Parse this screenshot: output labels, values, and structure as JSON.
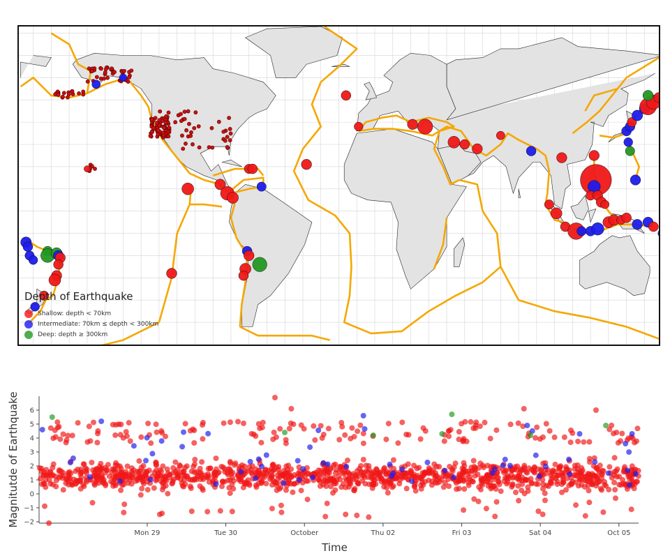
{
  "chart_data": [
    {
      "type": "scatter",
      "kind": "map",
      "legend_title": "Depth of Earthquake",
      "legend_placement": "bottom-left",
      "projection": "equirectangular-pacific-centered",
      "grid": true,
      "classes": [
        {
          "key": "shallow",
          "label": "Shallow: depth < 70km",
          "color": "#f01818"
        },
        {
          "key": "intermediate",
          "label": "Intermediate: 70km ≤ depth < 300km",
          "color": "#1c1cee"
        },
        {
          "key": "deep",
          "label": "Deep: depth ≥ 300km",
          "color": "#229922"
        }
      ],
      "colors": {
        "land": "#e3e3e3",
        "coast": "#222222",
        "plate_boundaries": "#f5a700",
        "grid": "#d4d4d4"
      },
      "points": [
        {
          "lon": -9,
          "lat": 38,
          "mag": 4.3,
          "cls": "shallow"
        },
        {
          "lon": 21,
          "lat": 39,
          "mag": 4.6,
          "cls": "shallow"
        },
        {
          "lon": 28,
          "lat": 38,
          "mag": 5.4,
          "cls": "shallow"
        },
        {
          "lon": 44,
          "lat": 31,
          "mag": 4.9,
          "cls": "shallow"
        },
        {
          "lon": 50,
          "lat": 30,
          "mag": 4.5,
          "cls": "shallow"
        },
        {
          "lon": 57,
          "lat": 28,
          "mag": 4.6,
          "cls": "shallow"
        },
        {
          "lon": 70,
          "lat": 34,
          "mag": 4.2,
          "cls": "shallow"
        },
        {
          "lon": 87,
          "lat": 27,
          "mag": 4.5,
          "cls": "intermediate"
        },
        {
          "lon": 104,
          "lat": 24,
          "mag": 4.6,
          "cls": "shallow"
        },
        {
          "lon": 122,
          "lat": 25,
          "mag": 4.6,
          "cls": "shallow"
        },
        {
          "lon": 123,
          "lat": 14,
          "mag": 6.9,
          "cls": "shallow"
        },
        {
          "lon": 122,
          "lat": 11,
          "mag": 5.0,
          "cls": "intermediate"
        },
        {
          "lon": 120,
          "lat": 7,
          "mag": 4.4,
          "cls": "shallow"
        },
        {
          "lon": 124,
          "lat": 7,
          "mag": 4.5,
          "cls": "shallow"
        },
        {
          "lon": 126,
          "lat": 4,
          "mag": 4.6,
          "cls": "shallow"
        },
        {
          "lon": 128,
          "lat": 3,
          "mag": 4.2,
          "cls": "shallow"
        },
        {
          "lon": 97,
          "lat": 3,
          "mag": 4.4,
          "cls": "shallow"
        },
        {
          "lon": 101,
          "lat": -1,
          "mag": 4.8,
          "cls": "shallow"
        },
        {
          "lon": 106,
          "lat": -7,
          "mag": 4.5,
          "cls": "shallow"
        },
        {
          "lon": 112,
          "lat": -9,
          "mag": 5.6,
          "cls": "shallow"
        },
        {
          "lon": 115,
          "lat": -9,
          "mag": 4.4,
          "cls": "intermediate"
        },
        {
          "lon": 120,
          "lat": -9,
          "mag": 4.5,
          "cls": "intermediate"
        },
        {
          "lon": 124,
          "lat": -8,
          "mag": 5.0,
          "cls": "intermediate"
        },
        {
          "lon": 130,
          "lat": -5,
          "mag": 4.8,
          "cls": "shallow"
        },
        {
          "lon": 133,
          "lat": -4,
          "mag": 4.7,
          "cls": "shallow"
        },
        {
          "lon": 137,
          "lat": -4,
          "mag": 4.3,
          "cls": "shallow"
        },
        {
          "lon": 140,
          "lat": -3,
          "mag": 4.5,
          "cls": "shallow"
        },
        {
          "lon": 146,
          "lat": -6,
          "mag": 4.6,
          "cls": "intermediate"
        },
        {
          "lon": 152,
          "lat": -5,
          "mag": 4.6,
          "cls": "intermediate"
        },
        {
          "lon": 155,
          "lat": -7,
          "mag": 4.5,
          "cls": "shallow"
        },
        {
          "lon": 160,
          "lat": -10,
          "mag": 4.3,
          "cls": "intermediate"
        },
        {
          "lon": 166,
          "lat": -14,
          "mag": 4.7,
          "cls": "intermediate"
        },
        {
          "lon": 167,
          "lat": -16,
          "mag": 4.5,
          "cls": "intermediate"
        },
        {
          "lon": 168,
          "lat": -20,
          "mag": 4.4,
          "cls": "intermediate"
        },
        {
          "lon": 170,
          "lat": -22,
          "mag": 4.3,
          "cls": "intermediate"
        },
        {
          "lon": 178,
          "lat": -18,
          "mag": 4.5,
          "cls": "deep"
        },
        {
          "lon": 178,
          "lat": -20,
          "mag": 5.2,
          "cls": "deep"
        },
        {
          "lon": -177,
          "lat": -19,
          "mag": 4.8,
          "cls": "deep"
        },
        {
          "lon": -176,
          "lat": -20,
          "mag": 4.6,
          "cls": "intermediate"
        },
        {
          "lon": -175,
          "lat": -21,
          "mag": 4.6,
          "cls": "shallow"
        },
        {
          "lon": -176,
          "lat": -24,
          "mag": 4.5,
          "cls": "shallow"
        },
        {
          "lon": -177,
          "lat": -29,
          "mag": 4.6,
          "cls": "shallow"
        },
        {
          "lon": -178,
          "lat": -31,
          "mag": 4.9,
          "cls": "shallow"
        },
        {
          "lon": 176,
          "lat": -38,
          "mag": 4.4,
          "cls": "shallow"
        },
        {
          "lon": 171,
          "lat": -43,
          "mag": 4.3,
          "cls": "intermediate"
        },
        {
          "lon": 140,
          "lat": 36,
          "mag": 4.5,
          "cls": "intermediate"
        },
        {
          "lon": 142,
          "lat": 38,
          "mag": 4.5,
          "cls": "intermediate"
        },
        {
          "lon": 141,
          "lat": 31,
          "mag": 4.3,
          "cls": "intermediate"
        },
        {
          "lon": 142,
          "lat": 27,
          "mag": 4.4,
          "cls": "deep"
        },
        {
          "lon": 143,
          "lat": 40,
          "mag": 4.4,
          "cls": "shallow"
        },
        {
          "lon": 146,
          "lat": 43,
          "mag": 4.7,
          "cls": "intermediate"
        },
        {
          "lon": 150,
          "lat": 46,
          "mag": 4.6,
          "cls": "intermediate"
        },
        {
          "lon": 152,
          "lat": 47,
          "mag": 5.6,
          "cls": "shallow"
        },
        {
          "lon": 155,
          "lat": 49,
          "mag": 5.3,
          "cls": "shallow"
        },
        {
          "lon": 152,
          "lat": 52,
          "mag": 4.6,
          "cls": "deep"
        },
        {
          "lon": 158,
          "lat": 51,
          "mag": 4.6,
          "cls": "shallow"
        },
        {
          "lon": 145,
          "lat": 14,
          "mag": 4.6,
          "cls": "intermediate"
        },
        {
          "lon": -140,
          "lat": 60,
          "mag": 4.0,
          "cls": "intermediate"
        },
        {
          "lon": -155,
          "lat": 57,
          "mag": 4.2,
          "cls": "intermediate"
        },
        {
          "lon": -160,
          "lat": 19,
          "mag": 3.6,
          "cls": "shallow"
        },
        {
          "lon": -104,
          "lat": 10,
          "mag": 4.9,
          "cls": "shallow"
        },
        {
          "lon": -86,
          "lat": 12,
          "mag": 4.7,
          "cls": "shallow"
        },
        {
          "lon": -82,
          "lat": 8,
          "mag": 5.2,
          "cls": "shallow"
        },
        {
          "lon": -79,
          "lat": 6,
          "mag": 4.8,
          "cls": "shallow"
        },
        {
          "lon": -70,
          "lat": 19,
          "mag": 4.4,
          "cls": "shallow"
        },
        {
          "lon": -68,
          "lat": 19,
          "mag": 4.5,
          "cls": "shallow"
        },
        {
          "lon": -63,
          "lat": 11,
          "mag": 4.4,
          "cls": "intermediate"
        },
        {
          "lon": -71,
          "lat": -18,
          "mag": 4.5,
          "cls": "intermediate"
        },
        {
          "lon": -70,
          "lat": -20,
          "mag": 4.6,
          "cls": "shallow"
        },
        {
          "lon": -72,
          "lat": -26,
          "mag": 4.8,
          "cls": "shallow"
        },
        {
          "lon": -73,
          "lat": -29,
          "mag": 4.5,
          "cls": "shallow"
        },
        {
          "lon": -64,
          "lat": -24,
          "mag": 5.3,
          "cls": "deep"
        },
        {
          "lon": -113,
          "lat": -28,
          "mag": 4.6,
          "cls": "shallow"
        },
        {
          "lon": -38,
          "lat": 21,
          "mag": 4.6,
          "cls": "shallow"
        },
        {
          "lon": -16,
          "lat": 52,
          "mag": 4.5,
          "cls": "shallow"
        }
      ],
      "minor_point_clusters": [
        {
          "lon_range": [
            -125,
            -114
          ],
          "lat_range": [
            33,
            42
          ],
          "count": 70,
          "cls": "shallow"
        },
        {
          "lon_range": [
            -160,
            -135
          ],
          "lat_range": [
            58,
            65
          ],
          "count": 40,
          "cls": "shallow"
        },
        {
          "lon_range": [
            -178,
            -162
          ],
          "lat_range": [
            51,
            54
          ],
          "count": 18,
          "cls": "shallow"
        },
        {
          "lon_range": [
            -120,
            -78
          ],
          "lat_range": [
            28,
            45
          ],
          "count": 45,
          "cls": "shallow"
        },
        {
          "lon_range": [
            -160,
            -155
          ],
          "lat_range": [
            18,
            21
          ],
          "count": 6,
          "cls": "shallow"
        }
      ]
    },
    {
      "type": "scatter",
      "kind": "time-series",
      "xlabel": "Time",
      "ylabel": "Magnitutde of Earthquake",
      "xlim": [
        "2017-09-27T15:00",
        "2017-10-05T06:00"
      ],
      "ylim": [
        -2.1,
        7
      ],
      "grid": false,
      "x_ticks": [
        {
          "t": "2017-09-29T00:00",
          "label": "Mon 29"
        },
        {
          "t": "2017-09-30T00:00",
          "label": "Tue 30"
        },
        {
          "t": "2017-10-01T00:00",
          "label": "October"
        },
        {
          "t": "2017-10-02T00:00",
          "label": "Thu 02"
        },
        {
          "t": "2017-10-03T00:00",
          "label": "Fri 03"
        },
        {
          "t": "2017-10-04T00:00",
          "label": "Sat 04"
        },
        {
          "t": "2017-10-05T00:00",
          "label": "Oct 05"
        }
      ],
      "y_ticks": [
        -2,
        -1,
        0,
        1,
        2,
        3,
        4,
        5,
        6
      ],
      "colors": {
        "shallow": "#f01818",
        "intermediate": "#1c1cee",
        "deep": "#229922"
      },
      "highlight_points": [
        {
          "t": "2017-09-30T15:00",
          "mag": 6.9,
          "cls": "shallow"
        },
        {
          "t": "2017-09-30T20:00",
          "mag": 6.1,
          "cls": "shallow"
        },
        {
          "t": "2017-10-03T19:00",
          "mag": 6.1,
          "cls": "shallow"
        },
        {
          "t": "2017-10-04T17:00",
          "mag": 6.0,
          "cls": "shallow"
        },
        {
          "t": "2017-09-27T19:00",
          "mag": 5.5,
          "cls": "deep"
        },
        {
          "t": "2017-10-02T21:00",
          "mag": 5.7,
          "cls": "deep"
        },
        {
          "t": "2017-10-04T20:00",
          "mag": 4.9,
          "cls": "deep"
        },
        {
          "t": "2017-10-03T21:00",
          "mag": 4.2,
          "cls": "deep"
        },
        {
          "t": "2017-10-01T21:00",
          "mag": 4.2,
          "cls": "deep"
        },
        {
          "t": "2017-10-02T18:00",
          "mag": 4.3,
          "cls": "deep"
        },
        {
          "t": "2017-09-30T18:00",
          "mag": 4.4,
          "cls": "deep"
        },
        {
          "t": "2017-10-05T04:00",
          "mag": 4.3,
          "cls": "intermediate"
        },
        {
          "t": "2017-09-28T10:00",
          "mag": 5.2,
          "cls": "intermediate"
        },
        {
          "t": "2017-10-01T18:00",
          "mag": 5.6,
          "cls": "intermediate"
        },
        {
          "t": "2017-10-03T20:00",
          "mag": 4.9,
          "cls": "intermediate"
        },
        {
          "t": "2017-10-04T12:00",
          "mag": 4.3,
          "cls": "intermediate"
        },
        {
          "t": "2017-09-27T16:00",
          "mag": 4.6,
          "cls": "intermediate"
        },
        {
          "t": "2017-10-05T02:00",
          "mag": 3.6,
          "cls": "intermediate"
        },
        {
          "t": "2017-09-29T21:00",
          "mag": 0.7,
          "cls": "intermediate"
        },
        {
          "t": "2017-09-27T18:00",
          "mag": -2.1,
          "cls": "shallow"
        }
      ],
      "bulk_series": {
        "cls": "shallow",
        "count": 1350,
        "seed": 42,
        "typical_range": [
          0,
          2.5
        ],
        "high_fraction": 0.12,
        "high_range": [
          3.6,
          5.2
        ],
        "low_fraction": 0.03,
        "low_range": [
          -1.8,
          -0.3
        ]
      },
      "intermediate_scatter": {
        "cls": "intermediate",
        "count": 55,
        "range": [
          0.5,
          5.2
        ],
        "seed": 7
      }
    }
  ]
}
